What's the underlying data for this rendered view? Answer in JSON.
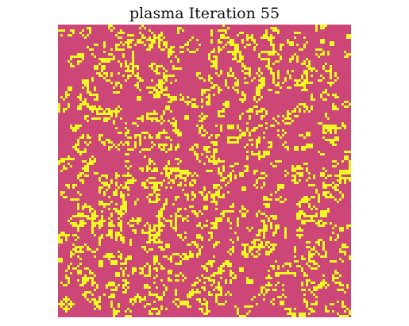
{
  "figure": {
    "title": "plasma Iteration 55"
  },
  "colors": {
    "background": "#cc4778",
    "live_cell": "#f0f921",
    "page_background": "#ffffff"
  },
  "grid": {
    "colormap": "plasma",
    "iteration": 55,
    "rows": 123,
    "cols": 123,
    "live_cell_fraction": 0.18
  }
}
